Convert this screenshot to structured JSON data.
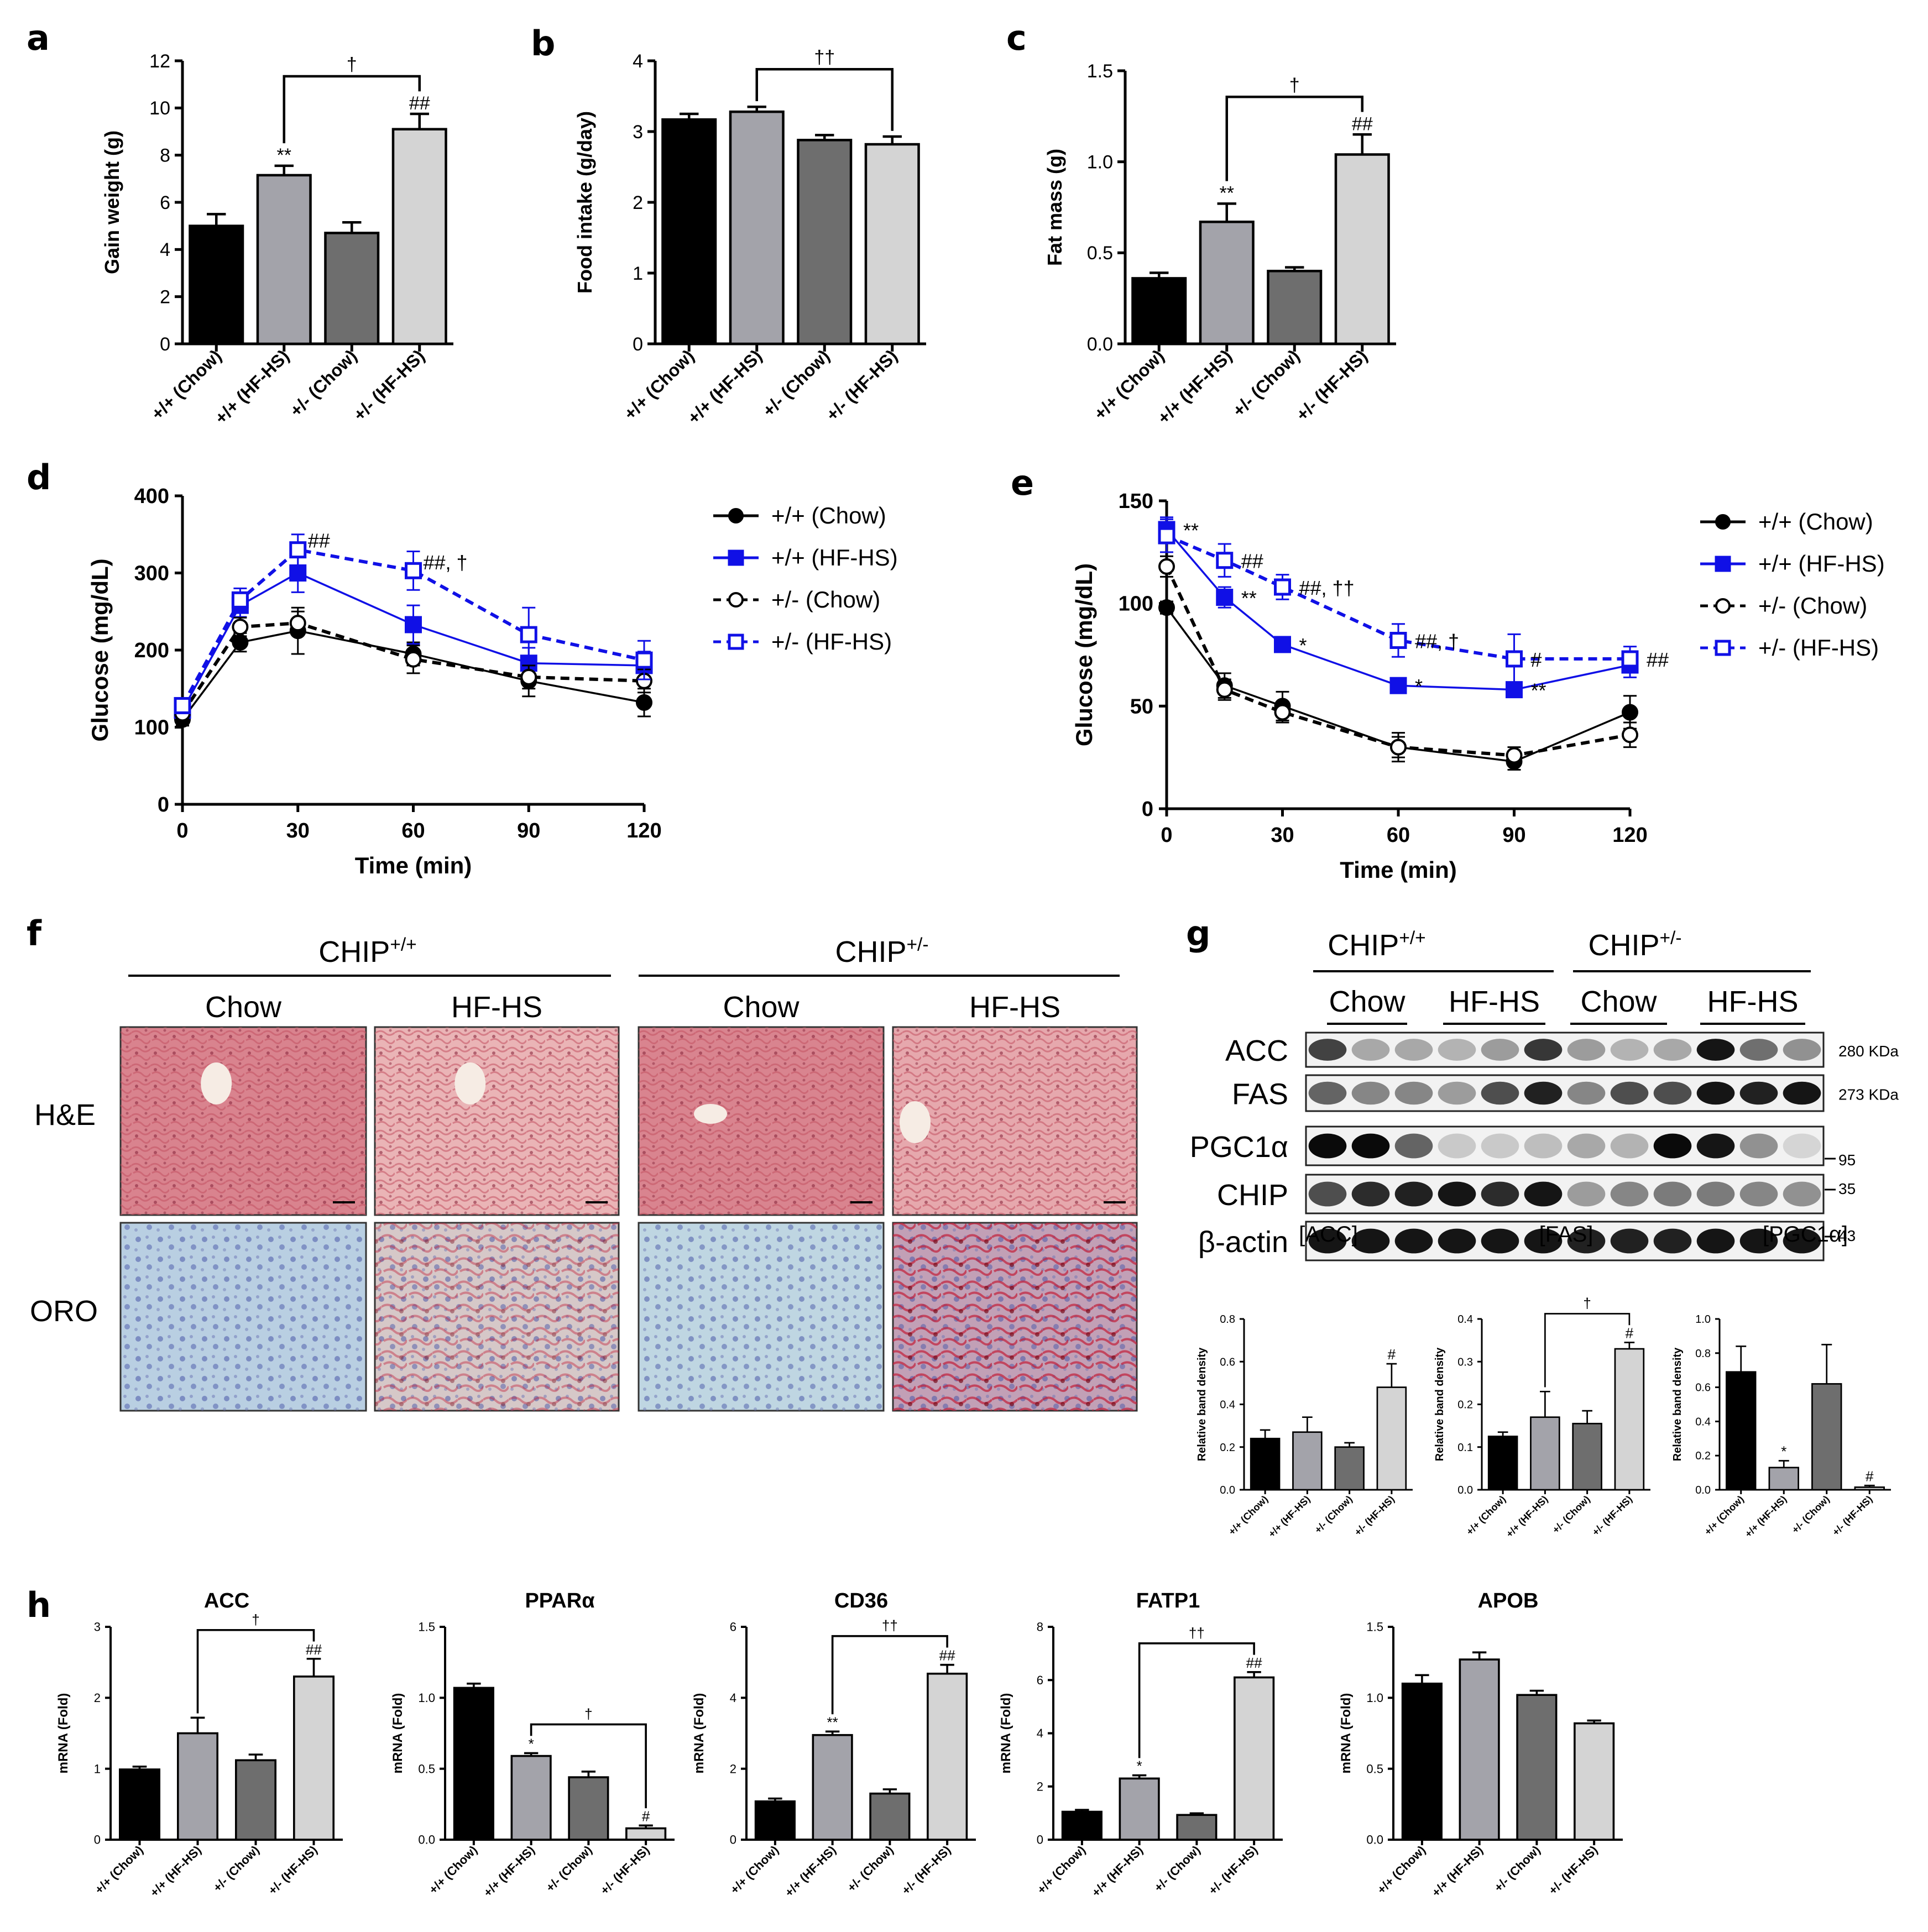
{
  "figure": {
    "panel_letters": [
      "a",
      "b",
      "c",
      "d",
      "e",
      "f",
      "g",
      "h"
    ],
    "colors": {
      "wt_chow": "#000000",
      "wt_hfhs": "#a3a3aa",
      "het_chow": "#6e6e6e",
      "het_hfhs": "#d4d4d4",
      "blue": "#1010e6"
    }
  },
  "chart_data": [
    {
      "id": "a",
      "type": "bar",
      "title": "",
      "categories": [
        "+/+ (Chow)",
        "+/+ (HF-HS)",
        "+/- (Chow)",
        "+/- (HF-HS)"
      ],
      "values": [
        5.0,
        7.15,
        4.7,
        9.1
      ],
      "errors": [
        0.5,
        0.4,
        0.45,
        0.65
      ],
      "ylabel": "Gain weight (g)",
      "ylim": [
        0,
        12
      ],
      "yticks": [
        "0",
        "2",
        "4",
        "6",
        "8",
        "10",
        "12"
      ],
      "marks": [
        "",
        "**",
        "",
        "##"
      ],
      "bracket": {
        "from": 1,
        "to": 3,
        "label": "†"
      }
    },
    {
      "id": "b",
      "type": "bar",
      "title": "",
      "categories": [
        "+/+ (Chow)",
        "+/+ (HF-HS)",
        "+/- (Chow)",
        "+/- (HF-HS)"
      ],
      "values": [
        3.17,
        3.28,
        2.88,
        2.82
      ],
      "errors": [
        0.08,
        0.07,
        0.07,
        0.11
      ],
      "ylabel": "Food intake (g/day)",
      "ylim": [
        0,
        4
      ],
      "yticks": [
        "0",
        "1",
        "2",
        "3",
        "4"
      ],
      "marks": [
        "",
        "",
        "",
        ""
      ],
      "bracket": {
        "from": 1,
        "to": 3,
        "label": "††"
      }
    },
    {
      "id": "c",
      "type": "bar",
      "title": "",
      "categories": [
        "+/+ (Chow)",
        "+/+ (HF-HS)",
        "+/- (Chow)",
        "+/- (HF-HS)"
      ],
      "values": [
        0.36,
        0.67,
        0.4,
        1.04
      ],
      "errors": [
        0.03,
        0.1,
        0.02,
        0.11
      ],
      "ylabel": "Fat mass (g)",
      "ylim": [
        0,
        1.5
      ],
      "yticks": [
        "0.0",
        "0.5",
        "1.0",
        "1.5"
      ],
      "marks": [
        "",
        "**",
        "",
        "##"
      ],
      "bracket": {
        "from": 1,
        "to": 3,
        "label": "†"
      }
    },
    {
      "id": "d",
      "type": "line",
      "x": [
        0,
        15,
        30,
        60,
        90,
        120
      ],
      "xticks": [
        "0",
        "30",
        "60",
        "90",
        "120"
      ],
      "xlabel": "Time (min)",
      "ylabel": "Glucose (mg/dL)",
      "ylim": [
        0,
        400
      ],
      "xlim": [
        0,
        120
      ],
      "yticks": [
        "0",
        "100",
        "200",
        "300",
        "400"
      ],
      "series": [
        {
          "name": "+/+ (Chow)",
          "values": [
            110,
            210,
            225,
            195,
            160,
            132
          ],
          "errors": [
            8,
            12,
            30,
            15,
            20,
            18
          ]
        },
        {
          "name": "+/+ (HF-HS)",
          "values": [
            122,
            258,
            300,
            233,
            183,
            180
          ],
          "errors": [
            8,
            15,
            25,
            25,
            20,
            18
          ]
        },
        {
          "name": "+/- (Chow)",
          "values": [
            118,
            230,
            235,
            188,
            165,
            160
          ],
          "errors": [
            8,
            12,
            15,
            18,
            15,
            15
          ]
        },
        {
          "name": "+/- (HF-HS)",
          "values": [
            128,
            265,
            330,
            303,
            220,
            187
          ],
          "errors": [
            10,
            15,
            20,
            25,
            35,
            25
          ]
        }
      ],
      "annotations": [
        "##",
        "##, †"
      ]
    },
    {
      "id": "e",
      "type": "line",
      "x": [
        0,
        15,
        30,
        60,
        90,
        120
      ],
      "xticks": [
        "0",
        "30",
        "60",
        "90",
        "120"
      ],
      "xlabel": "Time (min)",
      "ylabel": "Glucose (mg/dL)",
      "ylim": [
        0,
        150
      ],
      "xlim": [
        0,
        120
      ],
      "yticks": [
        "0",
        "50",
        "100",
        "150"
      ],
      "series": [
        {
          "name": "+/+ (Chow)",
          "values": [
            98,
            60,
            50,
            30,
            23,
            47
          ],
          "errors": [
            3,
            6,
            7,
            7,
            4,
            8
          ]
        },
        {
          "name": "+/+ (HF-HS)",
          "values": [
            136,
            103,
            80,
            60,
            58,
            70
          ],
          "errors": [
            6,
            5,
            2,
            3,
            3,
            6
          ]
        },
        {
          "name": "+/- (Chow)",
          "values": [
            118,
            58,
            47,
            30,
            26,
            36
          ],
          "errors": [
            5,
            5,
            5,
            5,
            4,
            6
          ]
        },
        {
          "name": "+/- (HF-HS)",
          "values": [
            133,
            121,
            108,
            82,
            73,
            73
          ],
          "errors": [
            8,
            8,
            6,
            8,
            12,
            6
          ]
        }
      ],
      "annotations": [
        "**",
        "##",
        "**",
        "##, ††",
        "*",
        "##, †",
        "*",
        "#",
        "**",
        "##"
      ]
    },
    {
      "id": "g-acc",
      "type": "bar",
      "title": "[ACC]",
      "categories": [
        "+/+ (Chow)",
        "+/+ (HF-HS)",
        "+/- (Chow)",
        "+/- (HF-HS)"
      ],
      "values": [
        0.24,
        0.27,
        0.2,
        0.48
      ],
      "errors": [
        0.04,
        0.07,
        0.02,
        0.11
      ],
      "ylabel": "Relative band density",
      "ylim": [
        0,
        0.8
      ],
      "yticks": [
        "0.0",
        "0.2",
        "0.4",
        "0.6",
        "0.8"
      ],
      "marks": [
        "",
        "",
        "",
        "#"
      ]
    },
    {
      "id": "g-fas",
      "type": "bar",
      "title": "[FAS]",
      "categories": [
        "+/+ (Chow)",
        "+/+ (HF-HS)",
        "+/- (Chow)",
        "+/- (HF-HS)"
      ],
      "values": [
        0.125,
        0.17,
        0.155,
        0.33
      ],
      "errors": [
        0.01,
        0.06,
        0.03,
        0.015
      ],
      "ylabel": "Relative band density",
      "ylim": [
        0,
        0.4
      ],
      "yticks": [
        "0.0",
        "0.1",
        "0.2",
        "0.3",
        "0.4"
      ],
      "marks": [
        "",
        "",
        "",
        "#"
      ],
      "bracket": {
        "from": 1,
        "to": 3,
        "label": "†"
      }
    },
    {
      "id": "g-pgc",
      "type": "bar",
      "title": "[PGC1α]",
      "categories": [
        "+/+ (Chow)",
        "+/+ (HF-HS)",
        "+/- (Chow)",
        "+/- (HF-HS)"
      ],
      "values": [
        0.69,
        0.13,
        0.62,
        0.015
      ],
      "errors": [
        0.15,
        0.04,
        0.23,
        0.01
      ],
      "ylabel": "Relative band density",
      "ylim": [
        0,
        1.0
      ],
      "yticks": [
        "0.0",
        "0.2",
        "0.4",
        "0.6",
        "0.8",
        "1.0"
      ],
      "marks": [
        "",
        "*",
        "",
        "#"
      ]
    },
    {
      "id": "h-acc",
      "type": "bar",
      "title": "ACC",
      "categories": [
        "+/+ (Chow)",
        "+/+ (HF-HS)",
        "+/- (Chow)",
        "+/- (HF-HS)"
      ],
      "values": [
        0.99,
        1.5,
        1.12,
        2.3
      ],
      "errors": [
        0.04,
        0.22,
        0.08,
        0.25
      ],
      "ylabel": "mRNA (Fold)",
      "ylim": [
        0,
        3
      ],
      "yticks": [
        "0",
        "1",
        "2",
        "3"
      ],
      "marks": [
        "",
        "",
        "",
        "##"
      ],
      "bracket": {
        "from": 1,
        "to": 3,
        "label": "†"
      }
    },
    {
      "id": "h-ppar",
      "type": "bar",
      "title": "PPARα",
      "categories": [
        "+/+ (Chow)",
        "+/+ (HF-HS)",
        "+/- (Chow)",
        "+/- (HF-HS)"
      ],
      "values": [
        1.07,
        0.59,
        0.44,
        0.08
      ],
      "errors": [
        0.03,
        0.02,
        0.04,
        0.02
      ],
      "ylabel": "mRNA (Fold)",
      "ylim": [
        0,
        1.5
      ],
      "yticks": [
        "0.0",
        "0.5",
        "1.0",
        "1.5"
      ],
      "marks": [
        "",
        "*",
        "",
        "#"
      ],
      "bracket": {
        "from": 1,
        "to": 3,
        "label": "†"
      }
    },
    {
      "id": "h-cd36",
      "type": "bar",
      "title": "CD36",
      "categories": [
        "+/+ (Chow)",
        "+/+ (HF-HS)",
        "+/- (Chow)",
        "+/- (HF-HS)"
      ],
      "values": [
        1.08,
        2.95,
        1.3,
        4.68
      ],
      "errors": [
        0.08,
        0.1,
        0.12,
        0.25
      ],
      "ylabel": "mRNA (Fold)",
      "ylim": [
        0,
        6
      ],
      "yticks": [
        "0",
        "2",
        "4",
        "6"
      ],
      "marks": [
        "",
        "**",
        "",
        "##"
      ],
      "bracket": {
        "from": 1,
        "to": 3,
        "label": "††"
      }
    },
    {
      "id": "h-fatp1",
      "type": "bar",
      "title": "FATP1",
      "categories": [
        "+/+ (Chow)",
        "+/+ (HF-HS)",
        "+/- (Chow)",
        "+/- (HF-HS)"
      ],
      "values": [
        1.05,
        2.3,
        0.93,
        6.1
      ],
      "errors": [
        0.07,
        0.12,
        0.06,
        0.2
      ],
      "ylabel": "mRNA (Fold)",
      "ylim": [
        0,
        8
      ],
      "yticks": [
        "0",
        "2",
        "4",
        "6",
        "8"
      ],
      "marks": [
        "",
        "*",
        "",
        "##"
      ],
      "bracket": {
        "from": 1,
        "to": 3,
        "label": "††"
      }
    },
    {
      "id": "h-apob",
      "type": "bar",
      "title": "APOB",
      "categories": [
        "+/+ (Chow)",
        "+/+ (HF-HS)",
        "+/- (Chow)",
        "+/- (HF-HS)"
      ],
      "values": [
        1.1,
        1.27,
        1.02,
        0.82
      ],
      "errors": [
        0.06,
        0.05,
        0.03,
        0.02
      ],
      "ylabel": "mRNA (Fold)",
      "ylim": [
        0,
        1.5
      ],
      "yticks": [
        "0.0",
        "0.5",
        "1.0",
        "1.5"
      ],
      "marks": [
        "",
        "",
        "",
        ""
      ]
    }
  ],
  "histology": {
    "genotype_wt": "CHIP",
    "genotype_wt_sup": "+/+",
    "genotype_het": "CHIP",
    "genotype_het_sup": "+/-",
    "diet_chow": "Chow",
    "diet_hfhs": "HF-HS",
    "row_he": "H&E",
    "row_oro": "ORO"
  },
  "western": {
    "genotype_wt": "CHIP",
    "genotype_wt_sup": "+/+",
    "genotype_het": "CHIP",
    "genotype_het_sup": "+/-",
    "diet_chow": "Chow",
    "diet_hfhs": "HF-HS",
    "bands": [
      {
        "name": "ACC",
        "marker": "280 KDa",
        "intensity": [
          0.75,
          0.3,
          0.3,
          0.25,
          0.35,
          0.8,
          0.35,
          0.25,
          0.3,
          0.95,
          0.55,
          0.4
        ]
      },
      {
        "name": "FAS",
        "marker": "273 KDa",
        "intensity": [
          0.6,
          0.45,
          0.45,
          0.35,
          0.7,
          0.9,
          0.45,
          0.7,
          0.7,
          0.95,
          0.9,
          0.95
        ]
      },
      {
        "name": "PGC1α",
        "marker": "95",
        "intensity": [
          1.0,
          1.0,
          0.6,
          0.15,
          0.15,
          0.2,
          0.3,
          0.25,
          1.0,
          0.95,
          0.4,
          0.1
        ]
      },
      {
        "name": "CHIP",
        "marker": "35",
        "intensity": [
          0.7,
          0.85,
          0.9,
          0.95,
          0.85,
          0.95,
          0.35,
          0.45,
          0.5,
          0.5,
          0.45,
          0.4
        ]
      },
      {
        "name": "β-actin",
        "marker": "43",
        "intensity": [
          0.95,
          0.95,
          0.95,
          0.95,
          0.95,
          0.95,
          0.9,
          0.9,
          0.9,
          0.95,
          0.95,
          0.95
        ]
      }
    ]
  }
}
